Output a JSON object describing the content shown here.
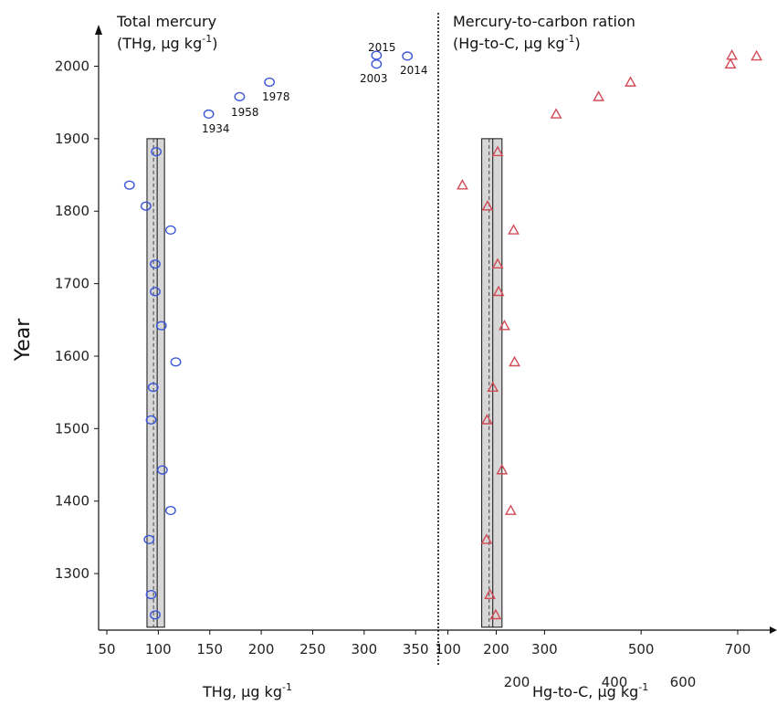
{
  "chart_data": {
    "type": "scatter",
    "ylabel": "Year",
    "ylim": [
      1222,
      2046
    ],
    "y_ticks": [
      1300,
      1400,
      1500,
      1600,
      1700,
      1800,
      1900,
      2000
    ],
    "panels": [
      {
        "id": "thg",
        "title_line1": "Total mercury",
        "title_line2": "(THg, µg kg",
        "title_sup": "-1",
        "title_close": ")",
        "xlabel": "THg, µg kg",
        "xlabel_sup": "-1",
        "xlim": [
          42,
          372
        ],
        "x_ticks": [
          50,
          100,
          150,
          200,
          250,
          300,
          350
        ],
        "marker": "circle",
        "color": "#3a55d9",
        "points": [
          {
            "x": 72,
            "y": 1836
          },
          {
            "x": 88,
            "y": 1807
          },
          {
            "x": 98,
            "y": 1882
          },
          {
            "x": 112,
            "y": 1774
          },
          {
            "x": 97,
            "y": 1727
          },
          {
            "x": 97,
            "y": 1689
          },
          {
            "x": 103,
            "y": 1642
          },
          {
            "x": 117,
            "y": 1592
          },
          {
            "x": 95,
            "y": 1557
          },
          {
            "x": 93,
            "y": 1512
          },
          {
            "x": 104,
            "y": 1443
          },
          {
            "x": 112,
            "y": 1387
          },
          {
            "x": 91,
            "y": 1347
          },
          {
            "x": 93,
            "y": 1271
          },
          {
            "x": 97,
            "y": 1243
          },
          {
            "x": 149,
            "y": 1934
          },
          {
            "x": 179,
            "y": 1958
          },
          {
            "x": 208,
            "y": 1978
          },
          {
            "x": 312,
            "y": 2003
          },
          {
            "x": 312,
            "y": 2015
          },
          {
            "x": 342,
            "y": 2014
          }
        ],
        "labels": [
          "2015",
          "2003",
          "2014",
          "1978",
          "1958",
          "1934"
        ],
        "box": {
          "x_min": 89,
          "x_max": 106,
          "x_center": 98,
          "y_min": 1226,
          "y_max": 1900
        }
      },
      {
        "id": "hgc",
        "title_line1": "Mercury-to-carbon ration",
        "title_line2": "(Hg-to-C, µg kg",
        "title_sup": "-1",
        "title_close": ")",
        "xlabel": "Hg-to-C, µg kg",
        "xlabel_sup": "-1",
        "xlim": [
          80,
          770
        ],
        "x_ticks_row1": [
          100,
          200,
          300,
          500,
          700
        ],
        "x_ticks_row2": [
          200,
          400,
          600
        ],
        "marker": "triangle",
        "color": "#d24a56",
        "points": [
          {
            "x": 130,
            "y": 1836
          },
          {
            "x": 182,
            "y": 1807
          },
          {
            "x": 203,
            "y": 1882
          },
          {
            "x": 236,
            "y": 1774
          },
          {
            "x": 203,
            "y": 1727
          },
          {
            "x": 205,
            "y": 1689
          },
          {
            "x": 217,
            "y": 1642
          },
          {
            "x": 238,
            "y": 1592
          },
          {
            "x": 193,
            "y": 1557
          },
          {
            "x": 181,
            "y": 1512
          },
          {
            "x": 212,
            "y": 1443
          },
          {
            "x": 230,
            "y": 1387
          },
          {
            "x": 180,
            "y": 1347
          },
          {
            "x": 187,
            "y": 1271
          },
          {
            "x": 199,
            "y": 1243
          },
          {
            "x": 324,
            "y": 1934
          },
          {
            "x": 412,
            "y": 1958
          },
          {
            "x": 478,
            "y": 1978
          },
          {
            "x": 685,
            "y": 2003
          },
          {
            "x": 688,
            "y": 2015
          },
          {
            "x": 739,
            "y": 2014
          }
        ],
        "box": {
          "x_min": 170,
          "x_max": 212,
          "x_center": 191,
          "y_min": 1226,
          "y_max": 1900
        }
      }
    ]
  }
}
